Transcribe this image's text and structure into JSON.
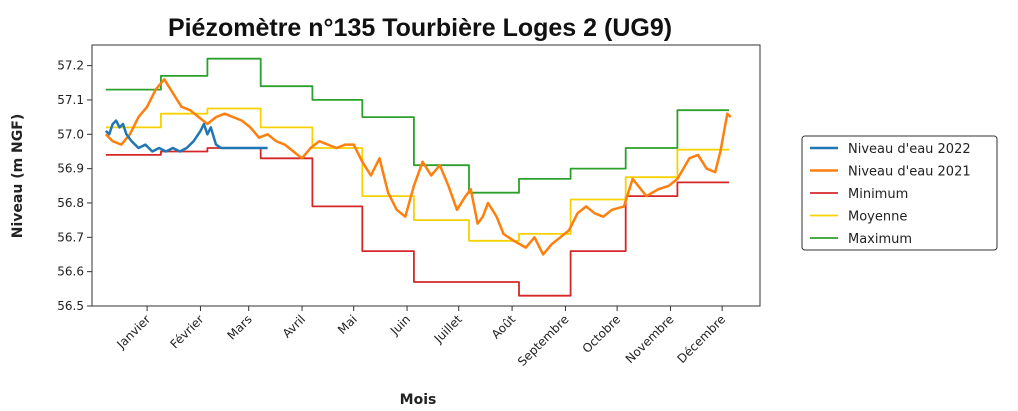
{
  "chart_data": {
    "type": "line",
    "title": "Piézomètre n°135 Tourbière Loges 2 (UG9)",
    "x_label": "Mois",
    "y_label": "Niveau (m NGF)",
    "xlim": [
      -17,
      371
    ],
    "ylim": [
      56.5,
      57.26
    ],
    "xticks": [
      {
        "value": 15,
        "label": "Janvier"
      },
      {
        "value": 46,
        "label": "Février"
      },
      {
        "value": 74,
        "label": "Mars"
      },
      {
        "value": 105,
        "label": "Avril"
      },
      {
        "value": 135,
        "label": "Mai"
      },
      {
        "value": 166,
        "label": "Juin"
      },
      {
        "value": 196,
        "label": "Juillet"
      },
      {
        "value": 227,
        "label": "Août"
      },
      {
        "value": 258,
        "label": "Septembre"
      },
      {
        "value": 288,
        "label": "Octobre"
      },
      {
        "value": 319,
        "label": "Novembre"
      },
      {
        "value": 349,
        "label": "Décembre"
      }
    ],
    "yticks": [
      56.5,
      56.6,
      56.7,
      56.8,
      56.9,
      {
        "value": 57.0,
        "label": "57.0"
      },
      57.1,
      57.2
    ],
    "legend": "right",
    "series": [
      {
        "name": "Niveau d'eau 2022",
        "color": "#1f77b4",
        "width": 2.5,
        "x": [
          -9,
          -7,
          -5,
          -3,
          -1,
          1,
          3,
          6,
          10,
          14,
          18,
          22,
          26,
          30,
          34,
          38,
          42,
          46,
          48,
          50,
          52,
          55,
          58,
          62,
          66,
          70,
          75,
          80,
          85
        ],
        "values": [
          57.01,
          57.0,
          57.03,
          57.04,
          57.02,
          57.03,
          57.0,
          56.98,
          56.96,
          56.97,
          56.95,
          56.96,
          56.95,
          56.96,
          56.95,
          56.96,
          56.98,
          57.01,
          57.03,
          57.0,
          57.02,
          56.97,
          56.96,
          56.96,
          56.96,
          56.96,
          56.96,
          56.96,
          56.96
        ]
      },
      {
        "name": "Niveau d'eau 2021",
        "color": "#ff7f0e",
        "width": 2.5,
        "x": [
          -9,
          -5,
          0,
          5,
          10,
          15,
          20,
          25,
          30,
          35,
          40,
          45,
          50,
          55,
          60,
          65,
          70,
          75,
          80,
          85,
          90,
          95,
          100,
          105,
          110,
          115,
          120,
          125,
          130,
          135,
          140,
          145,
          150,
          155,
          160,
          165,
          170,
          175,
          180,
          185,
          190,
          195,
          200,
          203,
          207,
          210,
          213,
          218,
          222,
          228,
          235,
          240,
          245,
          250,
          255,
          260,
          265,
          270,
          275,
          280,
          285,
          292,
          297,
          305,
          312,
          318,
          323,
          330,
          335,
          340,
          345,
          348,
          352,
          354
        ],
        "values": [
          57.0,
          56.98,
          56.97,
          57.0,
          57.05,
          57.08,
          57.13,
          57.16,
          57.12,
          57.08,
          57.07,
          57.05,
          57.03,
          57.05,
          57.06,
          57.05,
          57.04,
          57.02,
          56.99,
          57.0,
          56.98,
          56.97,
          56.95,
          56.93,
          56.96,
          56.98,
          56.97,
          56.96,
          56.97,
          56.97,
          56.92,
          56.88,
          56.93,
          56.83,
          56.78,
          56.76,
          56.85,
          56.92,
          56.88,
          56.91,
          56.85,
          56.78,
          56.82,
          56.84,
          56.74,
          56.76,
          56.8,
          56.76,
          56.71,
          56.69,
          56.67,
          56.7,
          56.65,
          56.68,
          56.7,
          56.72,
          56.77,
          56.79,
          56.77,
          56.76,
          56.78,
          56.79,
          56.87,
          56.82,
          56.84,
          56.85,
          56.87,
          56.93,
          56.94,
          56.9,
          56.89,
          56.95,
          57.06,
          57.05
        ]
      },
      {
        "name": "Minimum",
        "color": "#d62728",
        "width": 1.8,
        "x": [
          -9,
          23,
          23,
          50,
          50,
          81,
          81,
          111,
          111,
          140,
          140,
          170,
          170,
          231,
          231,
          261,
          261,
          293,
          293,
          323,
          323,
          353
        ],
        "values": [
          56.94,
          56.94,
          56.95,
          56.95,
          56.96,
          56.96,
          56.93,
          56.93,
          56.79,
          56.79,
          56.66,
          56.66,
          56.57,
          56.57,
          56.53,
          56.53,
          56.66,
          56.66,
          56.82,
          56.82,
          56.86,
          56.86
        ]
      },
      {
        "name": "Moyenne",
        "color": "#f5d200",
        "width": 1.8,
        "x": [
          -9,
          23,
          23,
          50,
          50,
          81,
          81,
          111,
          111,
          140,
          140,
          170,
          170,
          202,
          202,
          231,
          231,
          261,
          261,
          293,
          293,
          323,
          323,
          353
        ],
        "values": [
          57.02,
          57.02,
          57.06,
          57.06,
          57.075,
          57.075,
          57.02,
          57.02,
          56.96,
          56.96,
          56.82,
          56.82,
          56.75,
          56.75,
          56.69,
          56.69,
          56.71,
          56.71,
          56.81,
          56.81,
          56.875,
          56.875,
          56.955,
          56.955
        ]
      },
      {
        "name": "Maximum",
        "color": "#2ca02c",
        "width": 1.8,
        "x": [
          -9,
          23,
          23,
          50,
          50,
          81,
          81,
          111,
          111,
          140,
          140,
          170,
          170,
          202,
          202,
          231,
          231,
          261,
          261,
          293,
          293,
          323,
          323,
          353
        ],
        "values": [
          57.13,
          57.13,
          57.17,
          57.17,
          57.22,
          57.22,
          57.14,
          57.14,
          57.1,
          57.1,
          57.05,
          57.05,
          56.91,
          56.91,
          56.83,
          56.83,
          56.87,
          56.87,
          56.9,
          56.9,
          56.96,
          56.96,
          57.07,
          57.07
        ]
      }
    ]
  }
}
